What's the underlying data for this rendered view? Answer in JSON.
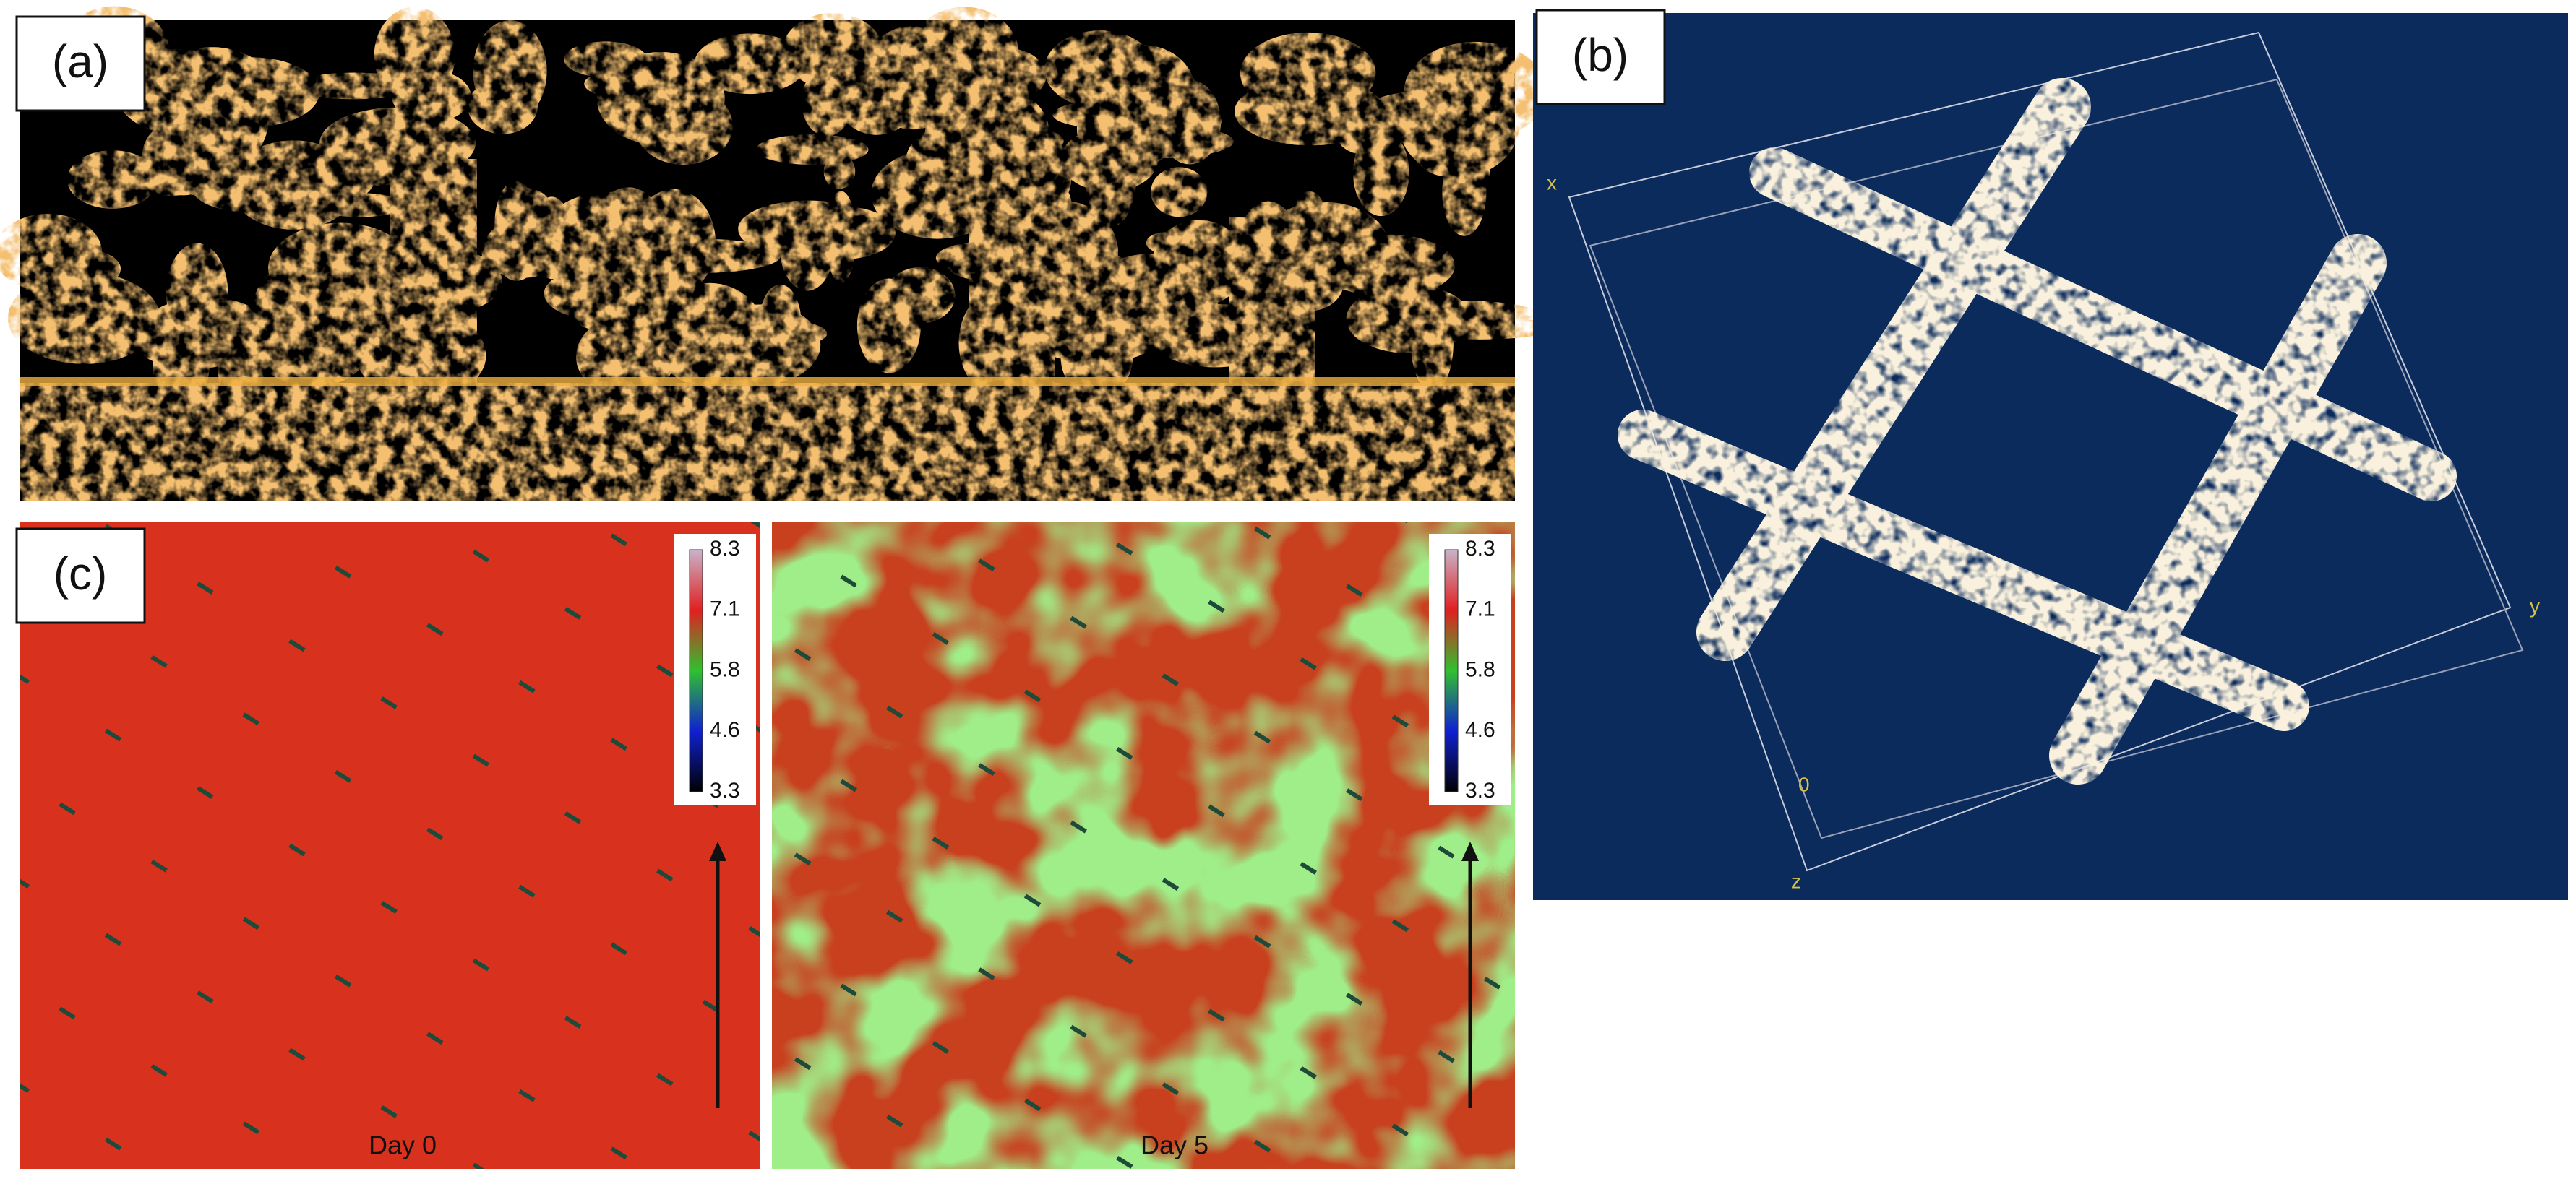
{
  "panels": [
    {
      "label": "(a)"
    },
    {
      "label": "(b)",
      "axes": [
        "x",
        "y",
        "z",
        "0"
      ]
    },
    {
      "label": "(c)",
      "colorbar": [
        8.3,
        7.1,
        5.8,
        4.6,
        3.3
      ],
      "images": [
        "Day 0",
        "Day 5"
      ]
    }
  ]
}
